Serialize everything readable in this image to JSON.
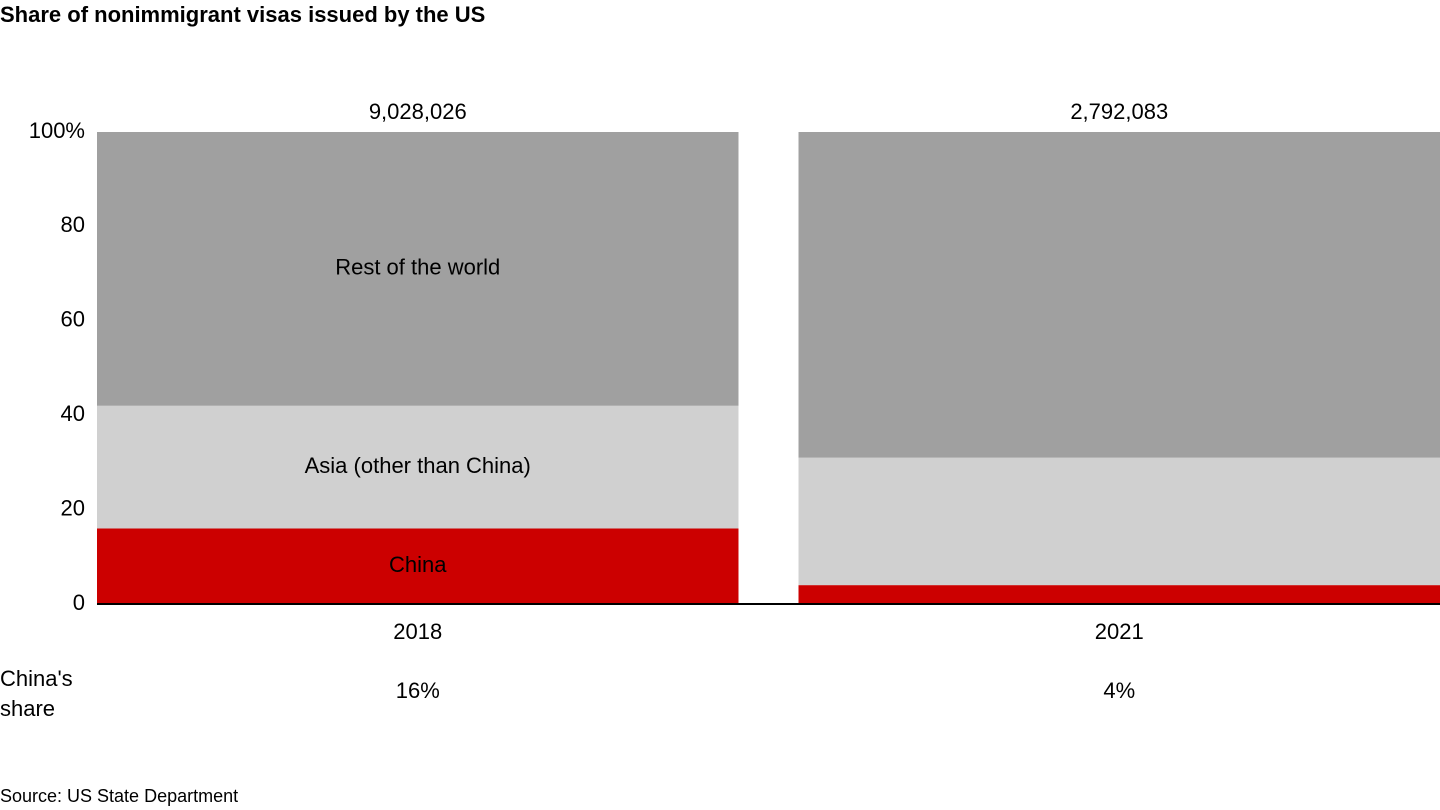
{
  "chart_data": {
    "type": "stacked_bar",
    "title": "Share of nonimmigrant visas issued by the US",
    "categories": [
      "2018",
      "2021"
    ],
    "series": [
      {
        "name": "China",
        "color": "#cc0000",
        "label_color": "#ffffff",
        "values": [
          16,
          4
        ]
      },
      {
        "name": "Asia (other than China)",
        "color": "#d0d0d0",
        "label_color": "#000000",
        "values": [
          26,
          27
        ]
      },
      {
        "name": "Rest of the world",
        "color": "#a0a0a0",
        "label_color": "#ffffff",
        "values": [
          58,
          69
        ]
      }
    ],
    "ylim": [
      0,
      100
    ],
    "yticks": [
      0,
      20,
      40,
      60,
      80,
      {
        "value": 100,
        "label": "100%"
      }
    ],
    "grid": false,
    "totals": {
      "values": [
        9028026,
        2792083
      ],
      "value_labels": [
        "9,028,026",
        "2,792,083"
      ]
    },
    "china_share": {
      "label": "China's share",
      "values": [
        16,
        4
      ],
      "value_labels": [
        "16%",
        "4%"
      ]
    },
    "source": "Source: US State Department"
  }
}
